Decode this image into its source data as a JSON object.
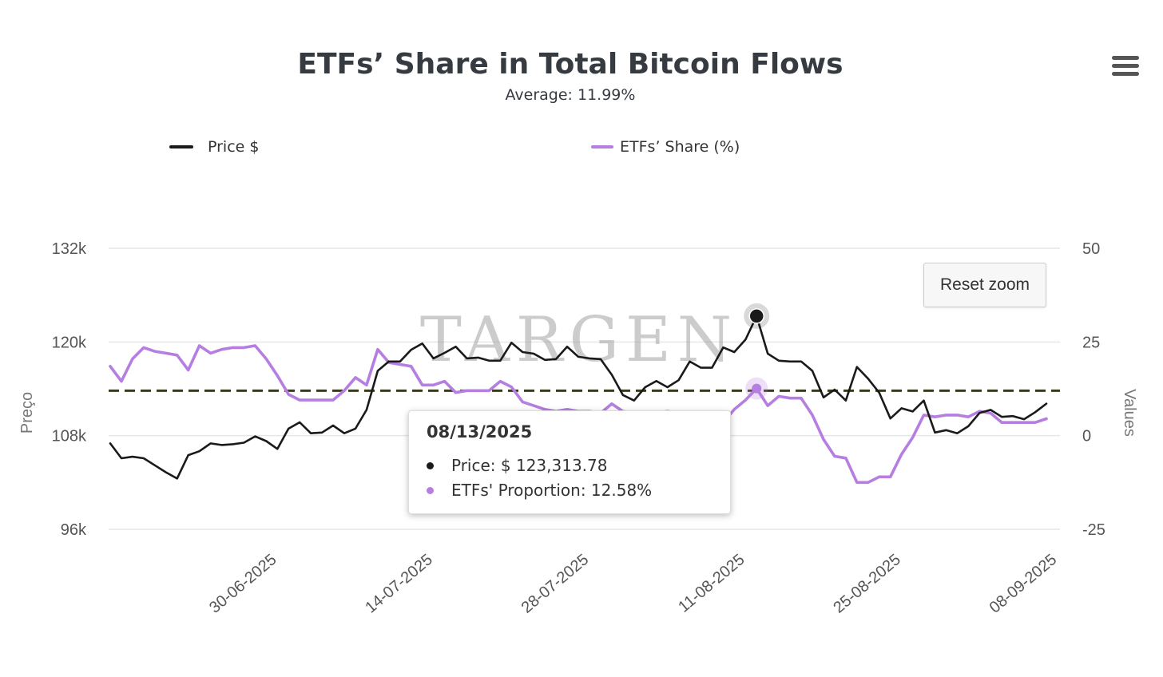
{
  "menu": {
    "icon": "hamburger-menu-icon"
  },
  "reset_zoom": {
    "label": "Reset zoom"
  },
  "tooltip": {
    "date": "08/13/2025",
    "price_text": "Price: $ 123,313.78",
    "etf_text": "ETFs' Proportion: 12.58%"
  },
  "watermark": "TARGEN",
  "chart_data": {
    "type": "line",
    "title": "ETFs’ Share in Total Bitcoin Flows",
    "subtitle": "Average: 11.99%",
    "legend": {
      "position": "top"
    },
    "grid": true,
    "x_axis": {
      "tick_labels": [
        "30-06-2025",
        "14-07-2025",
        "28-07-2025",
        "11-08-2025",
        "25-08-2025",
        "08-09-2025"
      ],
      "range": [
        "2025-06-16",
        "2025-09-08"
      ]
    },
    "y_axis_left": {
      "label": "Preço",
      "range": [
        96000,
        132000
      ],
      "tick_labels": [
        "132k",
        "120k",
        "108k",
        "96k"
      ]
    },
    "y_axis_right": {
      "label": "Values",
      "range": [
        -25,
        50
      ],
      "tick_labels": [
        "50",
        "25",
        "0",
        "-25"
      ]
    },
    "average_line": {
      "value": 11.99,
      "axis": "right"
    },
    "colors": {
      "price": "#1a1a1a",
      "etf": "#b57ee0",
      "average": "#3a3a1f",
      "grid": "#e6e6e6"
    },
    "highlight": {
      "date": "2025-08-13",
      "price": 123313.78,
      "etf": 12.58
    },
    "series": [
      {
        "name": "Price $",
        "axis": "left",
        "points": [
          [
            "2025-06-16",
            107000
          ],
          [
            "2025-06-17",
            105100
          ],
          [
            "2025-06-18",
            105300
          ],
          [
            "2025-06-19",
            105100
          ],
          [
            "2025-06-20",
            104200
          ],
          [
            "2025-06-21",
            103300
          ],
          [
            "2025-06-22",
            102500
          ],
          [
            "2025-06-23",
            105500
          ],
          [
            "2025-06-24",
            106000
          ],
          [
            "2025-06-25",
            107000
          ],
          [
            "2025-06-26",
            106800
          ],
          [
            "2025-06-27",
            106900
          ],
          [
            "2025-06-28",
            107100
          ],
          [
            "2025-06-29",
            107900
          ],
          [
            "2025-06-30",
            107300
          ],
          [
            "2025-07-01",
            106300
          ],
          [
            "2025-07-02",
            108900
          ],
          [
            "2025-07-03",
            109700
          ],
          [
            "2025-07-04",
            108300
          ],
          [
            "2025-07-05",
            108400
          ],
          [
            "2025-07-06",
            109300
          ],
          [
            "2025-07-07",
            108300
          ],
          [
            "2025-07-08",
            108900
          ],
          [
            "2025-07-09",
            111300
          ],
          [
            "2025-07-10",
            116300
          ],
          [
            "2025-07-11",
            117500
          ],
          [
            "2025-07-12",
            117500
          ],
          [
            "2025-07-13",
            119000
          ],
          [
            "2025-07-14",
            119800
          ],
          [
            "2025-07-15",
            117900
          ],
          [
            "2025-07-16",
            118600
          ],
          [
            "2025-07-17",
            119400
          ],
          [
            "2025-07-18",
            117900
          ],
          [
            "2025-07-19",
            118000
          ],
          [
            "2025-07-20",
            117600
          ],
          [
            "2025-07-21",
            117600
          ],
          [
            "2025-07-22",
            119900
          ],
          [
            "2025-07-23",
            118700
          ],
          [
            "2025-07-24",
            118500
          ],
          [
            "2025-07-25",
            117700
          ],
          [
            "2025-07-26",
            117800
          ],
          [
            "2025-07-27",
            119400
          ],
          [
            "2025-07-28",
            118100
          ],
          [
            "2025-07-29",
            117900
          ],
          [
            "2025-07-30",
            117800
          ],
          [
            "2025-07-31",
            115800
          ],
          [
            "2025-08-01",
            113200
          ],
          [
            "2025-08-02",
            112500
          ],
          [
            "2025-08-03",
            114200
          ],
          [
            "2025-08-04",
            115000
          ],
          [
            "2025-08-05",
            114200
          ],
          [
            "2025-08-06",
            115100
          ],
          [
            "2025-08-07",
            117500
          ],
          [
            "2025-08-08",
            116700
          ],
          [
            "2025-08-09",
            116700
          ],
          [
            "2025-08-10",
            119300
          ],
          [
            "2025-08-11",
            118700
          ],
          [
            "2025-08-12",
            120300
          ],
          [
            "2025-08-13",
            123313.78
          ],
          [
            "2025-08-14",
            118500
          ],
          [
            "2025-08-15",
            117600
          ],
          [
            "2025-08-16",
            117500
          ],
          [
            "2025-08-17",
            117500
          ],
          [
            "2025-08-18",
            116300
          ],
          [
            "2025-08-19",
            112900
          ],
          [
            "2025-08-20",
            113900
          ],
          [
            "2025-08-21",
            112500
          ],
          [
            "2025-08-22",
            116800
          ],
          [
            "2025-08-23",
            115300
          ],
          [
            "2025-08-24",
            113500
          ],
          [
            "2025-08-25",
            110200
          ],
          [
            "2025-08-26",
            111500
          ],
          [
            "2025-08-27",
            111100
          ],
          [
            "2025-08-28",
            112500
          ],
          [
            "2025-08-29",
            108400
          ],
          [
            "2025-08-30",
            108700
          ],
          [
            "2025-08-31",
            108300
          ],
          [
            "2025-09-01",
            109200
          ],
          [
            "2025-09-02",
            110900
          ],
          [
            "2025-09-03",
            111300
          ],
          [
            "2025-09-04",
            110400
          ],
          [
            "2025-09-05",
            110500
          ],
          [
            "2025-09-06",
            110100
          ],
          [
            "2025-09-07",
            111000
          ],
          [
            "2025-09-08",
            112100
          ]
        ]
      },
      {
        "name": "ETFs’ Share (%)",
        "axis": "right",
        "points": [
          [
            "2025-06-16",
            18.5
          ],
          [
            "2025-06-17",
            14.5
          ],
          [
            "2025-06-18",
            20.5
          ],
          [
            "2025-06-19",
            23.5
          ],
          [
            "2025-06-20",
            22.5
          ],
          [
            "2025-06-21",
            22.0
          ],
          [
            "2025-06-22",
            21.5
          ],
          [
            "2025-06-23",
            17.5
          ],
          [
            "2025-06-24",
            24.0
          ],
          [
            "2025-06-25",
            22.0
          ],
          [
            "2025-06-26",
            23.0
          ],
          [
            "2025-06-27",
            23.5
          ],
          [
            "2025-06-28",
            23.5
          ],
          [
            "2025-06-29",
            24.0
          ],
          [
            "2025-06-30",
            20.5
          ],
          [
            "2025-07-01",
            16.0
          ],
          [
            "2025-07-02",
            11.0
          ],
          [
            "2025-07-03",
            9.5
          ],
          [
            "2025-07-04",
            9.5
          ],
          [
            "2025-07-05",
            9.5
          ],
          [
            "2025-07-06",
            9.5
          ],
          [
            "2025-07-07",
            12.0
          ],
          [
            "2025-07-08",
            15.5
          ],
          [
            "2025-07-09",
            13.5
          ],
          [
            "2025-07-10",
            23.0
          ],
          [
            "2025-07-11",
            19.5
          ],
          [
            "2025-07-12",
            19.0
          ],
          [
            "2025-07-13",
            18.5
          ],
          [
            "2025-07-14",
            13.5
          ],
          [
            "2025-07-15",
            13.5
          ],
          [
            "2025-07-16",
            14.5
          ],
          [
            "2025-07-17",
            11.5
          ],
          [
            "2025-07-18",
            12.0
          ],
          [
            "2025-07-19",
            12.0
          ],
          [
            "2025-07-20",
            12.0
          ],
          [
            "2025-07-21",
            14.5
          ],
          [
            "2025-07-22",
            13.0
          ],
          [
            "2025-07-23",
            9.0
          ],
          [
            "2025-07-24",
            8.0
          ],
          [
            "2025-07-25",
            7.0
          ],
          [
            "2025-07-26",
            6.5
          ],
          [
            "2025-07-27",
            7.0
          ],
          [
            "2025-07-28",
            6.5
          ],
          [
            "2025-07-29",
            6.5
          ],
          [
            "2025-07-30",
            6.0
          ],
          [
            "2025-07-31",
            8.5
          ],
          [
            "2025-08-01",
            6.5
          ],
          [
            "2025-08-02",
            6.0
          ],
          [
            "2025-08-03",
            5.0
          ],
          [
            "2025-08-04",
            6.0
          ],
          [
            "2025-08-05",
            6.5
          ],
          [
            "2025-08-06",
            6.0
          ],
          [
            "2025-08-07",
            6.0
          ],
          [
            "2025-08-08",
            5.5
          ],
          [
            "2025-08-09",
            4.5
          ],
          [
            "2025-08-10",
            3.5
          ],
          [
            "2025-08-11",
            7.0
          ],
          [
            "2025-08-12",
            9.5
          ],
          [
            "2025-08-13",
            12.58
          ],
          [
            "2025-08-14",
            8.0
          ],
          [
            "2025-08-15",
            10.5
          ],
          [
            "2025-08-16",
            10.0
          ],
          [
            "2025-08-17",
            10.0
          ],
          [
            "2025-08-18",
            5.5
          ],
          [
            "2025-08-19",
            -1.0
          ],
          [
            "2025-08-20",
            -5.5
          ],
          [
            "2025-08-21",
            -6.0
          ],
          [
            "2025-08-22",
            -12.5
          ],
          [
            "2025-08-23",
            -12.5
          ],
          [
            "2025-08-24",
            -11.0
          ],
          [
            "2025-08-25",
            -11.0
          ],
          [
            "2025-08-26",
            -5.0
          ],
          [
            "2025-08-27",
            -0.5
          ],
          [
            "2025-08-28",
            5.5
          ],
          [
            "2025-08-29",
            5.0
          ],
          [
            "2025-08-30",
            5.5
          ],
          [
            "2025-08-31",
            5.5
          ],
          [
            "2025-09-01",
            5.0
          ],
          [
            "2025-09-02",
            6.5
          ],
          [
            "2025-09-03",
            6.0
          ],
          [
            "2025-09-04",
            3.5
          ],
          [
            "2025-09-05",
            3.5
          ],
          [
            "2025-09-06",
            3.5
          ],
          [
            "2025-09-07",
            3.5
          ],
          [
            "2025-09-08",
            4.5
          ]
        ]
      }
    ]
  }
}
